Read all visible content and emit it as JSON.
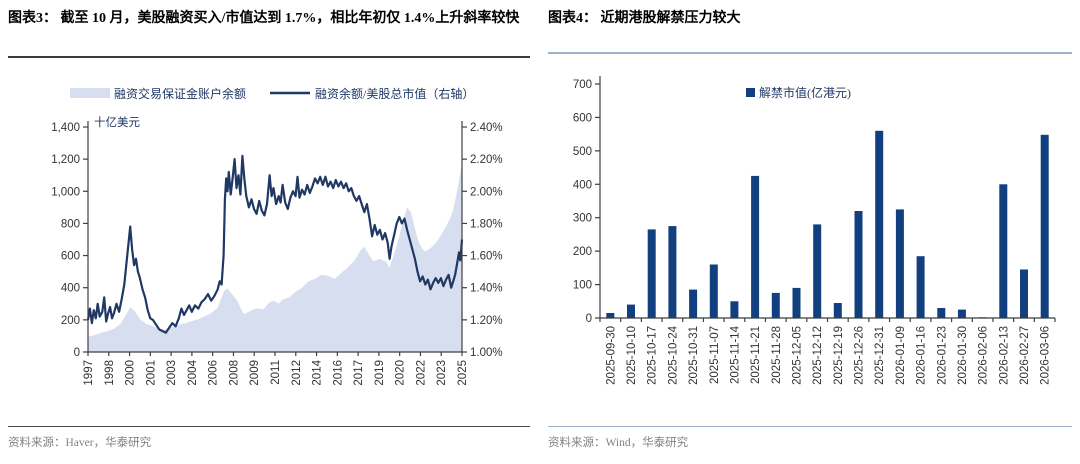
{
  "panels": {
    "left": {
      "title": "图表3：  截至 10 月，美股融资买入/市值达到 1.7%，相比年初仅 1.4%上升斜率较快",
      "source": "资料来源：Haver，华泰研究"
    },
    "right": {
      "title": "图表4：  近期港股解禁压力较大",
      "source": "资料来源：Wind，华泰研究"
    }
  },
  "colors": {
    "navy_line": "#1F3864",
    "bar_fill": "#123F7E",
    "area_fill": "#D6DEF0",
    "axis": "#3f3f3f",
    "tick_text": "#333333",
    "legend_text": "#1F3864",
    "unit_text": "#1F3864"
  },
  "chart_data": [
    {
      "type": "area+line",
      "panel": "left",
      "unit_label": "十亿美元",
      "legend": [
        "融资交易保证金账户余额",
        "融资余额/美股总市值（右轴）"
      ],
      "x_range": [
        1997,
        2025.83
      ],
      "x_tick_labels": [
        "1997",
        "1998",
        "2000",
        "2001",
        "2003",
        "2004",
        "2006",
        "2008",
        "2009",
        "2011",
        "2012",
        "2014",
        "2016",
        "2017",
        "2019",
        "2020",
        "2022",
        "2023",
        "2025"
      ],
      "left_axis": {
        "min": 0,
        "max": 1400,
        "tick_labels": [
          "0",
          "200",
          "400",
          "600",
          "800",
          "1,000",
          "1,200",
          "1,400"
        ]
      },
      "right_axis": {
        "min": 1.0,
        "max": 2.4,
        "tick_labels": [
          "1.00%",
          "1.20%",
          "1.40%",
          "1.60%",
          "1.80%",
          "2.00%",
          "2.20%",
          "2.40%"
        ]
      },
      "series": [
        {
          "name": "融资交易保证金账户余额",
          "type": "area",
          "axis": "left",
          "points": [
            [
              1997.0,
              95
            ],
            [
              1997.5,
              105
            ],
            [
              1998.0,
              120
            ],
            [
              1998.5,
              130
            ],
            [
              1999.0,
              145
            ],
            [
              1999.5,
              175
            ],
            [
              2000.0,
              240
            ],
            [
              2000.25,
              280
            ],
            [
              2000.6,
              255
            ],
            [
              2001.0,
              205
            ],
            [
              2001.5,
              175
            ],
            [
              2002.0,
              160
            ],
            [
              2002.5,
              145
            ],
            [
              2003.0,
              140
            ],
            [
              2003.5,
              155
            ],
            [
              2004.0,
              170
            ],
            [
              2004.5,
              180
            ],
            [
              2005.0,
              192
            ],
            [
              2005.5,
              205
            ],
            [
              2006.0,
              222
            ],
            [
              2006.5,
              240
            ],
            [
              2007.0,
              275
            ],
            [
              2007.5,
              380
            ],
            [
              2007.75,
              395
            ],
            [
              2008.0,
              370
            ],
            [
              2008.5,
              320
            ],
            [
              2009.0,
              235
            ],
            [
              2009.5,
              255
            ],
            [
              2010.0,
              272
            ],
            [
              2010.5,
              265
            ],
            [
              2011.0,
              310
            ],
            [
              2011.3,
              320
            ],
            [
              2011.7,
              300
            ],
            [
              2012.0,
              325
            ],
            [
              2012.5,
              340
            ],
            [
              2013.0,
              375
            ],
            [
              2013.5,
              400
            ],
            [
              2014.0,
              440
            ],
            [
              2014.5,
              455
            ],
            [
              2015.0,
              480
            ],
            [
              2015.5,
              475
            ],
            [
              2016.0,
              455
            ],
            [
              2016.5,
              490
            ],
            [
              2017.0,
              525
            ],
            [
              2017.5,
              565
            ],
            [
              2018.0,
              630
            ],
            [
              2018.3,
              655
            ],
            [
              2018.7,
              600
            ],
            [
              2019.0,
              565
            ],
            [
              2019.5,
              580
            ],
            [
              2020.0,
              560
            ],
            [
              2020.25,
              525
            ],
            [
              2020.6,
              610
            ],
            [
              2021.0,
              720
            ],
            [
              2021.3,
              820
            ],
            [
              2021.6,
              900
            ],
            [
              2021.9,
              870
            ],
            [
              2022.2,
              770
            ],
            [
              2022.5,
              680
            ],
            [
              2022.8,
              640
            ],
            [
              2023.0,
              625
            ],
            [
              2023.3,
              640
            ],
            [
              2023.6,
              660
            ],
            [
              2024.0,
              700
            ],
            [
              2024.3,
              740
            ],
            [
              2024.6,
              780
            ],
            [
              2024.9,
              830
            ],
            [
              2025.1,
              870
            ],
            [
              2025.3,
              940
            ],
            [
              2025.5,
              1020
            ],
            [
              2025.65,
              1090
            ],
            [
              2025.83,
              1185
            ]
          ]
        },
        {
          "name": "融资余额/美股总市值（右轴）",
          "type": "line",
          "axis": "right",
          "points": [
            [
              1997.0,
              1.2
            ],
            [
              1997.15,
              1.27
            ],
            [
              1997.3,
              1.18
            ],
            [
              1997.45,
              1.26
            ],
            [
              1997.6,
              1.21
            ],
            [
              1997.75,
              1.3
            ],
            [
              1997.9,
              1.22
            ],
            [
              1998.1,
              1.25
            ],
            [
              1998.25,
              1.34
            ],
            [
              1998.4,
              1.19
            ],
            [
              1998.55,
              1.24
            ],
            [
              1998.7,
              1.28
            ],
            [
              1998.85,
              1.21
            ],
            [
              1999.0,
              1.24
            ],
            [
              1999.2,
              1.3
            ],
            [
              1999.4,
              1.25
            ],
            [
              1999.6,
              1.33
            ],
            [
              1999.8,
              1.42
            ],
            [
              2000.0,
              1.58
            ],
            [
              2000.15,
              1.7
            ],
            [
              2000.25,
              1.78
            ],
            [
              2000.4,
              1.64
            ],
            [
              2000.55,
              1.54
            ],
            [
              2000.7,
              1.58
            ],
            [
              2000.85,
              1.5
            ],
            [
              2001.0,
              1.46
            ],
            [
              2001.2,
              1.39
            ],
            [
              2001.4,
              1.34
            ],
            [
              2001.6,
              1.26
            ],
            [
              2001.8,
              1.21
            ],
            [
              2002.0,
              1.2
            ],
            [
              2002.25,
              1.17
            ],
            [
              2002.5,
              1.14
            ],
            [
              2002.75,
              1.13
            ],
            [
              2003.0,
              1.12
            ],
            [
              2003.25,
              1.15
            ],
            [
              2003.5,
              1.18
            ],
            [
              2003.75,
              1.16
            ],
            [
              2004.0,
              1.21
            ],
            [
              2004.2,
              1.27
            ],
            [
              2004.4,
              1.23
            ],
            [
              2004.6,
              1.26
            ],
            [
              2004.8,
              1.29
            ],
            [
              2005.0,
              1.25
            ],
            [
              2005.25,
              1.29
            ],
            [
              2005.5,
              1.27
            ],
            [
              2005.75,
              1.31
            ],
            [
              2006.0,
              1.33
            ],
            [
              2006.25,
              1.36
            ],
            [
              2006.5,
              1.32
            ],
            [
              2006.75,
              1.35
            ],
            [
              2007.0,
              1.39
            ],
            [
              2007.15,
              1.44
            ],
            [
              2007.3,
              1.42
            ],
            [
              2007.45,
              1.6
            ],
            [
              2007.55,
              1.95
            ],
            [
              2007.65,
              2.08
            ],
            [
              2007.75,
              2.0
            ],
            [
              2007.85,
              2.12
            ],
            [
              2008.0,
              1.98
            ],
            [
              2008.15,
              2.08
            ],
            [
              2008.3,
              2.2
            ],
            [
              2008.45,
              2.02
            ],
            [
              2008.6,
              2.1
            ],
            [
              2008.75,
              1.98
            ],
            [
              2008.9,
              2.22
            ],
            [
              2009.05,
              2.08
            ],
            [
              2009.2,
              1.97
            ],
            [
              2009.4,
              1.9
            ],
            [
              2009.6,
              1.95
            ],
            [
              2009.8,
              1.89
            ],
            [
              2010.0,
              1.86
            ],
            [
              2010.2,
              1.94
            ],
            [
              2010.4,
              1.88
            ],
            [
              2010.6,
              1.85
            ],
            [
              2010.8,
              1.92
            ],
            [
              2011.0,
              2.1
            ],
            [
              2011.15,
              1.97
            ],
            [
              2011.3,
              2.02
            ],
            [
              2011.5,
              1.92
            ],
            [
              2011.7,
              1.97
            ],
            [
              2011.85,
              1.93
            ],
            [
              2012.0,
              2.04
            ],
            [
              2012.2,
              1.93
            ],
            [
              2012.4,
              1.89
            ],
            [
              2012.6,
              1.96
            ],
            [
              2012.8,
              2.0
            ],
            [
              2013.0,
              1.97
            ],
            [
              2013.15,
              2.09
            ],
            [
              2013.3,
              1.96
            ],
            [
              2013.5,
              2.01
            ],
            [
              2013.7,
              1.98
            ],
            [
              2013.9,
              2.04
            ],
            [
              2014.1,
              1.99
            ],
            [
              2014.3,
              2.03
            ],
            [
              2014.5,
              2.08
            ],
            [
              2014.7,
              2.05
            ],
            [
              2014.9,
              2.09
            ],
            [
              2015.1,
              2.04
            ],
            [
              2015.3,
              2.09
            ],
            [
              2015.5,
              2.03
            ],
            [
              2015.7,
              2.06
            ],
            [
              2015.9,
              2.02
            ],
            [
              2016.1,
              2.07
            ],
            [
              2016.3,
              2.03
            ],
            [
              2016.5,
              2.06
            ],
            [
              2016.7,
              2.02
            ],
            [
              2016.9,
              2.05
            ],
            [
              2017.1,
              2.0
            ],
            [
              2017.3,
              2.02
            ],
            [
              2017.5,
              1.97
            ],
            [
              2017.7,
              1.94
            ],
            [
              2017.9,
              1.97
            ],
            [
              2018.1,
              1.92
            ],
            [
              2018.3,
              1.87
            ],
            [
              2018.5,
              1.92
            ],
            [
              2018.7,
              1.83
            ],
            [
              2018.9,
              1.72
            ],
            [
              2019.1,
              1.79
            ],
            [
              2019.3,
              1.73
            ],
            [
              2019.5,
              1.76
            ],
            [
              2019.7,
              1.7
            ],
            [
              2019.9,
              1.74
            ],
            [
              2020.1,
              1.68
            ],
            [
              2020.25,
              1.58
            ],
            [
              2020.4,
              1.66
            ],
            [
              2020.6,
              1.73
            ],
            [
              2020.8,
              1.8
            ],
            [
              2021.0,
              1.84
            ],
            [
              2021.2,
              1.8
            ],
            [
              2021.4,
              1.83
            ],
            [
              2021.6,
              1.76
            ],
            [
              2021.8,
              1.7
            ],
            [
              2022.0,
              1.64
            ],
            [
              2022.2,
              1.58
            ],
            [
              2022.4,
              1.5
            ],
            [
              2022.6,
              1.44
            ],
            [
              2022.8,
              1.47
            ],
            [
              2023.0,
              1.42
            ],
            [
              2023.2,
              1.45
            ],
            [
              2023.4,
              1.39
            ],
            [
              2023.6,
              1.43
            ],
            [
              2023.8,
              1.46
            ],
            [
              2024.0,
              1.43
            ],
            [
              2024.2,
              1.46
            ],
            [
              2024.4,
              1.41
            ],
            [
              2024.6,
              1.45
            ],
            [
              2024.8,
              1.48
            ],
            [
              2025.0,
              1.4
            ],
            [
              2025.15,
              1.44
            ],
            [
              2025.3,
              1.48
            ],
            [
              2025.45,
              1.55
            ],
            [
              2025.6,
              1.62
            ],
            [
              2025.7,
              1.57
            ],
            [
              2025.83,
              1.7
            ]
          ]
        }
      ]
    },
    {
      "type": "bar",
      "panel": "right",
      "legend_label": "解禁市值(亿港元)",
      "y_axis": {
        "min": 0,
        "max": 700,
        "tick_labels": [
          "0",
          "100",
          "200",
          "300",
          "400",
          "500",
          "600",
          "700"
        ]
      },
      "categories": [
        "2025-09-30",
        "2025-10-10",
        "2025-10-17",
        "2025-10-24",
        "2025-10-31",
        "2025-11-07",
        "2025-11-14",
        "2025-11-21",
        "2025-11-28",
        "2025-12-05",
        "2025-12-12",
        "2025-12-19",
        "2025-12-26",
        "2025-12-31",
        "2026-01-09",
        "2026-01-16",
        "2026-01-23",
        "2026-01-30",
        "2026-02-06",
        "2026-02-13",
        "2026-02-27",
        "2026-03-06"
      ],
      "values": [
        15,
        40,
        265,
        275,
        85,
        160,
        50,
        425,
        75,
        90,
        280,
        45,
        320,
        560,
        325,
        185,
        30,
        25,
        2,
        400,
        145,
        548
      ]
    }
  ]
}
